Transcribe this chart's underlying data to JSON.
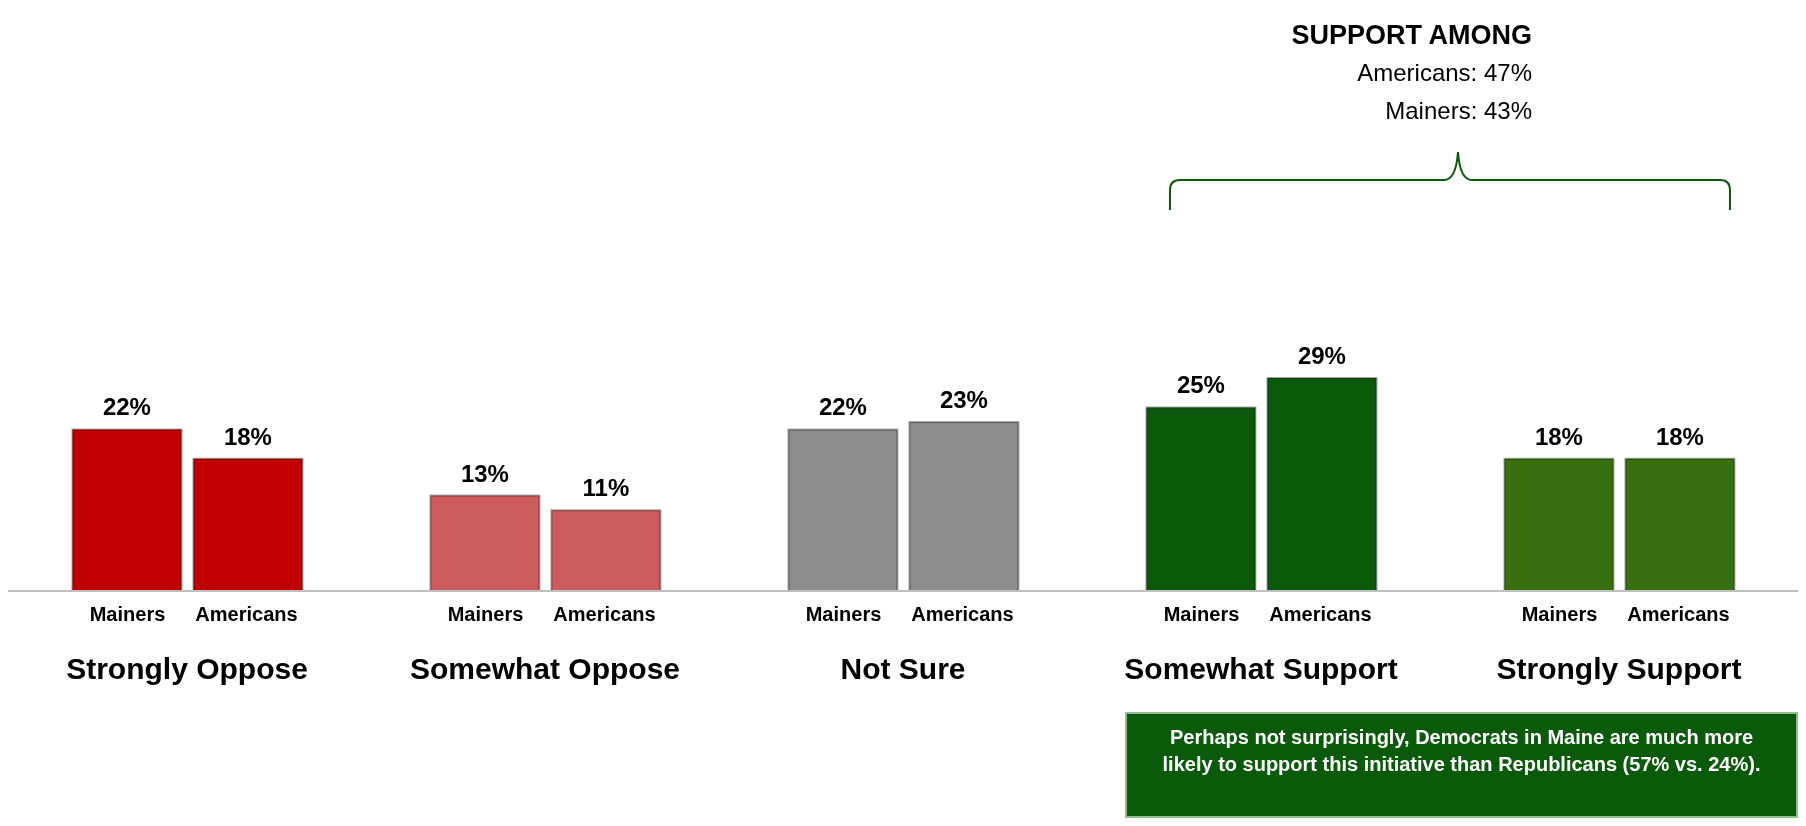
{
  "chart_data": {
    "type": "bar",
    "categories": [
      "Strongly Oppose",
      "Somewhat Oppose",
      "Not Sure",
      "Somewhat Support",
      "Strongly Support"
    ],
    "series": [
      {
        "name": "Mainers",
        "colors": [
          "#c00000",
          "#cd5b5b",
          "#8c8c8c",
          "#0b5a0b",
          "#38700f"
        ],
        "values": [
          22,
          13,
          22,
          25,
          18
        ],
        "value_labels": [
          "22%",
          "13%",
          "22%",
          "25%",
          "18%"
        ]
      },
      {
        "name": "Americans",
        "colors": [
          "#c00000",
          "#cd5b5b",
          "#8c8c8c",
          "#0b5a0b",
          "#38700f"
        ],
        "values": [
          18,
          11,
          23,
          29,
          18
        ],
        "value_labels": [
          "18%",
          "11%",
          "23%",
          "29%",
          "18%"
        ]
      }
    ],
    "annotations": [
      "SUPPORT AMONG",
      "Americans: 47%",
      "Mainers: 43%",
      "Perhaps not surprisingly, Democrats in Maine are much more likely to support this initiative than Republicans (57% vs. 24%)."
    ],
    "grid": false,
    "legend": false
  }
}
